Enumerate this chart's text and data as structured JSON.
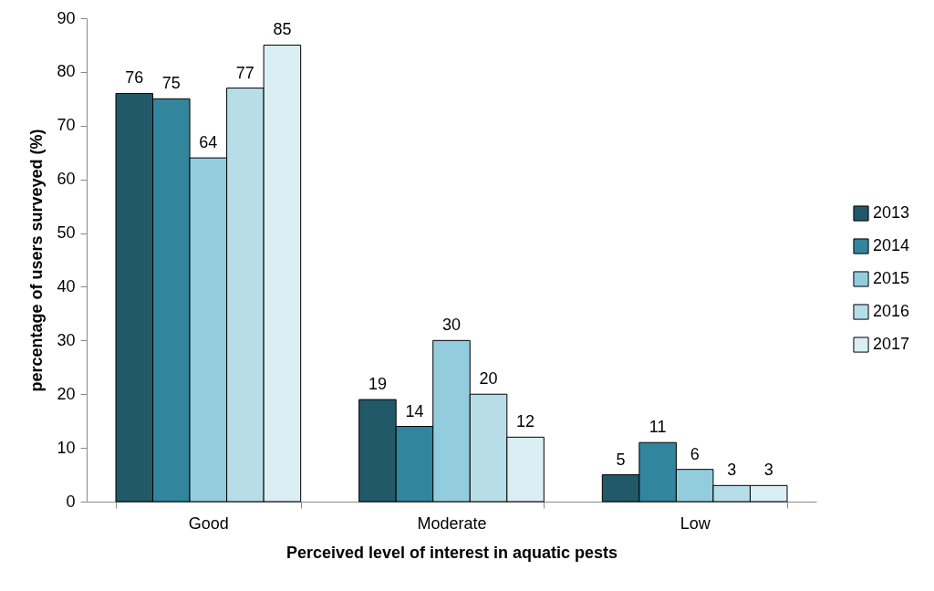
{
  "chart_data": {
    "type": "bar",
    "xlabel": "Perceived level of interest in aquatic pests",
    "ylabel": "percentage of users surveyed (%)",
    "categories": [
      "Good",
      "Moderate",
      "Low"
    ],
    "series": [
      {
        "name": "2013",
        "color": "#215968",
        "values": [
          76,
          19,
          5
        ]
      },
      {
        "name": "2014",
        "color": "#31859c",
        "values": [
          75,
          14,
          11
        ]
      },
      {
        "name": "2015",
        "color": "#93cddd",
        "values": [
          64,
          30,
          6
        ]
      },
      {
        "name": "2016",
        "color": "#b7dee8",
        "values": [
          77,
          20,
          3
        ]
      },
      {
        "name": "2017",
        "color": "#dbeef4",
        "values": [
          85,
          12,
          3
        ]
      }
    ],
    "ylim": [
      0,
      90
    ],
    "yticks": [
      0,
      10,
      20,
      30,
      40,
      50,
      60,
      70,
      80,
      90
    ],
    "grid": false,
    "legend": "right",
    "data_labels": true
  }
}
